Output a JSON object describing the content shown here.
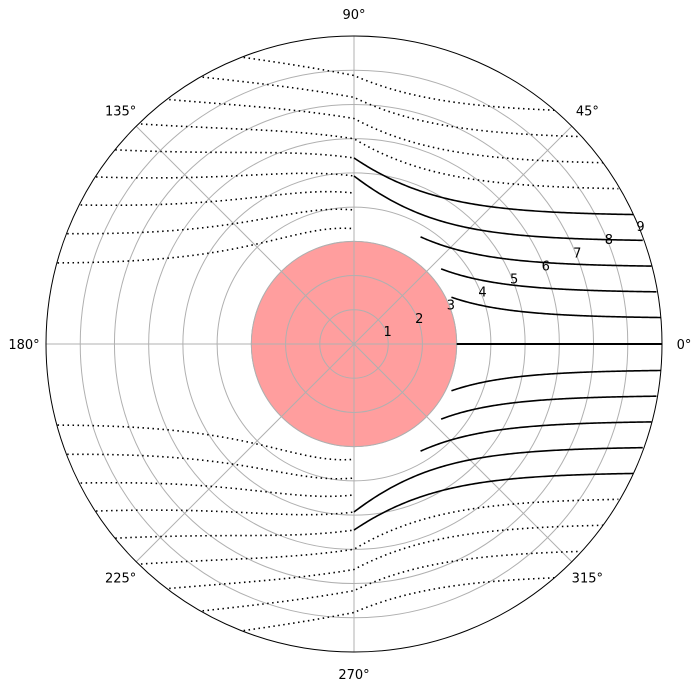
{
  "chart_data": {
    "type": "polar-line",
    "title": "",
    "angle_tick_labels": [
      "0°",
      "45°",
      "90°",
      "135°",
      "180°",
      "225°",
      "270°",
      "315°"
    ],
    "angle_ticks_deg": [
      0,
      45,
      90,
      135,
      180,
      225,
      270,
      315
    ],
    "r_tick_labels": [
      "1",
      "2",
      "3",
      "4",
      "5",
      "6",
      "7",
      "8",
      "9"
    ],
    "r_ticks": [
      1,
      2,
      3,
      4,
      5,
      6,
      7,
      8,
      9
    ],
    "r_tick_label_angle_deg": 22.5,
    "rlim": [
      0,
      9
    ],
    "grid": true,
    "disk": {
      "radius": 3,
      "color": "#ff9999"
    },
    "streamlines": {
      "description_of_encoding": "straight-line offsets b; solid segment where x>0 behind disk region, dotted elsewhere",
      "offsets_upper": [
        0.75,
        1.5,
        2.25,
        3.0,
        3.75,
        4.5,
        5.25,
        6.0,
        6.75
      ],
      "offsets_lower": [
        -0.75,
        -1.5,
        -2.25,
        -3.0,
        -3.75,
        -4.5,
        -5.25,
        -6.0,
        -6.75
      ],
      "line_color": "#000000"
    }
  }
}
